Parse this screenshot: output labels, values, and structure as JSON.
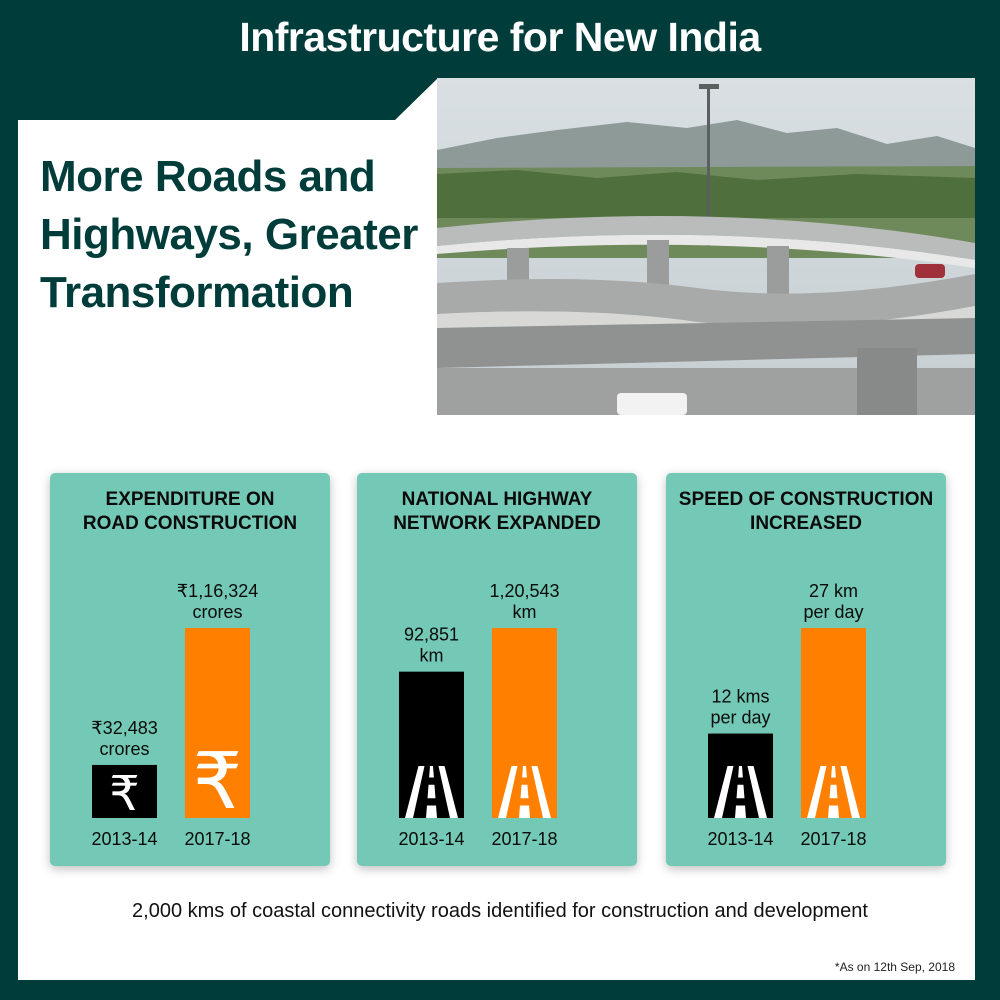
{
  "header": {
    "title": "Infrastructure for New India"
  },
  "headline": "More Roads and Highways, Greater Transformation",
  "photo": {
    "icon": "flyover-photo"
  },
  "colors": {
    "background": "#003d3a",
    "card": "#74c8b6",
    "bar_2013": "#000000",
    "bar_2017": "#ff7f00"
  },
  "chart_data": [
    {
      "type": "bar",
      "title": "EXPENDITURE ON\nROAD CONSTRUCTION",
      "categories": [
        "2013-14",
        "2017-18"
      ],
      "values": [
        32483,
        116324
      ],
      "value_labels": [
        [
          "₹32,483",
          "crores"
        ],
        [
          "₹1,16,324",
          "crores"
        ]
      ],
      "unit": "crores",
      "icon": "rupee-icon"
    },
    {
      "type": "bar",
      "title": "NATIONAL HIGHWAY\nNETWORK EXPANDED",
      "categories": [
        "2013-14",
        "2017-18"
      ],
      "values": [
        92851,
        120543
      ],
      "value_labels": [
        [
          "92,851",
          "km"
        ],
        [
          "1,20,543",
          "km"
        ]
      ],
      "unit": "km",
      "icon": "road-icon"
    },
    {
      "type": "bar",
      "title": "SPEED OF CONSTRUCTION\nINCREASED",
      "categories": [
        "2013-14",
        "2017-18"
      ],
      "values": [
        12,
        27
      ],
      "value_labels": [
        [
          "12 kms",
          "per day"
        ],
        [
          "27 km",
          "per day"
        ]
      ],
      "unit": "km per day",
      "icon": "road-icon"
    }
  ],
  "footer": {
    "note": "2,000 kms of coastal connectivity roads identified for construction and development",
    "as_of": "*As on 12th Sep, 2018"
  }
}
